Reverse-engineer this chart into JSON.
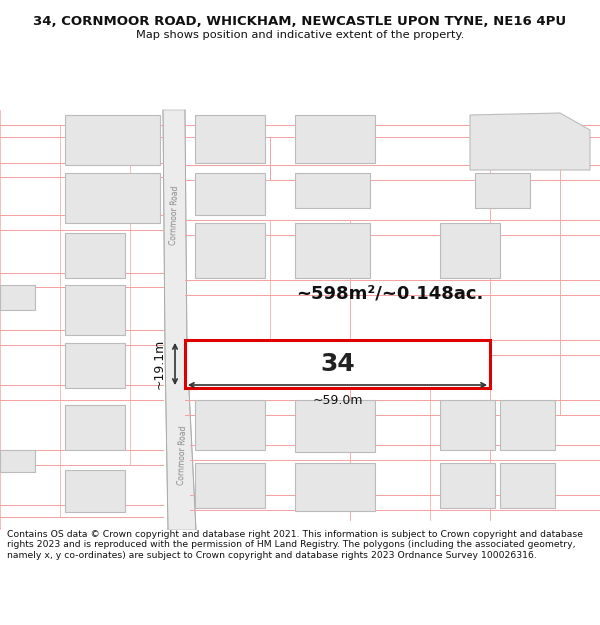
{
  "title_line1": "34, CORNMOOR ROAD, WHICKHAM, NEWCASTLE UPON TYNE, NE16 4PU",
  "title_line2": "Map shows position and indicative extent of the property.",
  "footer_text": "Contains OS data © Crown copyright and database right 2021. This information is subject to Crown copyright and database rights 2023 and is reproduced with the permission of HM Land Registry. The polygons (including the associated geometry, namely x, y co-ordinates) are subject to Crown copyright and database rights 2023 Ordnance Survey 100026316.",
  "area_label": "~598m²/~0.148ac.",
  "width_label": "~59.0m",
  "height_label": "~19.1m",
  "property_number": "34",
  "bg_color": "#ffffff",
  "map_bg": "#f8f8f8",
  "bld_fill": "#e6e6e6",
  "bld_edge": "#bbbbbb",
  "hl_fill": "#ffffff",
  "hl_edge": "#dd0000",
  "road_fill": "#ececec",
  "road_edge": "#c0c0c0",
  "pink": "#f5a0a0",
  "road_label_color": "#888888",
  "dim_color": "#333333",
  "title_color": "#111111",
  "footer_color": "#111111"
}
